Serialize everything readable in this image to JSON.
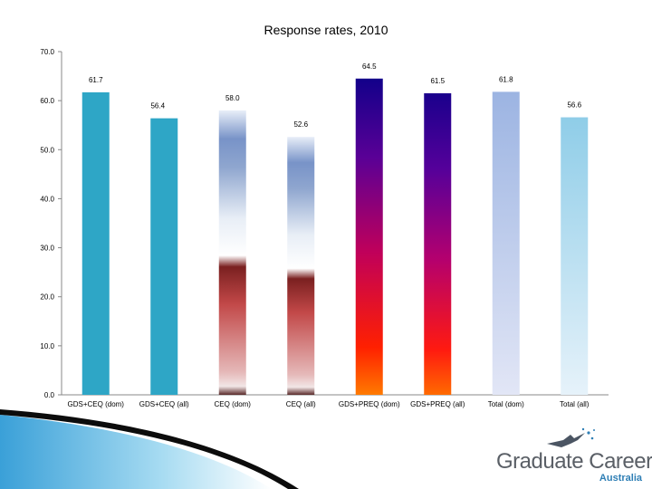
{
  "chart_data": {
    "type": "bar",
    "title": "Response rates, 2010",
    "categories": [
      "GDS+CEQ (dom)",
      "GDS+CEQ (all)",
      "CEQ (dom)",
      "CEQ (all)",
      "GDS+PREQ (dom)",
      "GDS+PREQ (all)",
      "Total (dom)",
      "Total (all)"
    ],
    "values": [
      61.7,
      56.4,
      58.0,
      52.6,
      64.5,
      61.5,
      61.8,
      56.6
    ],
    "value_labels": [
      "61.7",
      "56.4",
      "58.0",
      "52.6",
      "64.5",
      "61.5",
      "61.8",
      "56.6"
    ],
    "ylim": [
      0,
      70
    ],
    "yticks": [
      0,
      10,
      20,
      30,
      40,
      50,
      60,
      70
    ],
    "ytick_labels": [
      "0.0",
      "10.0",
      "20.0",
      "30.0",
      "40.0",
      "50.0",
      "60.0",
      "70.0"
    ],
    "xlabel": "",
    "ylabel": "",
    "grid": false,
    "legend": "none",
    "bar_colors": [
      "#2ea6c6",
      "#2ea6c6",
      "gradient-maroon-blue",
      "gradient-maroon-blue",
      "gradient-orange-blue",
      "gradient-red-navy",
      "gradient-lavender",
      "gradient-skyblue"
    ]
  },
  "logo": {
    "line1": "Graduate Careers",
    "line2": "Australia"
  }
}
